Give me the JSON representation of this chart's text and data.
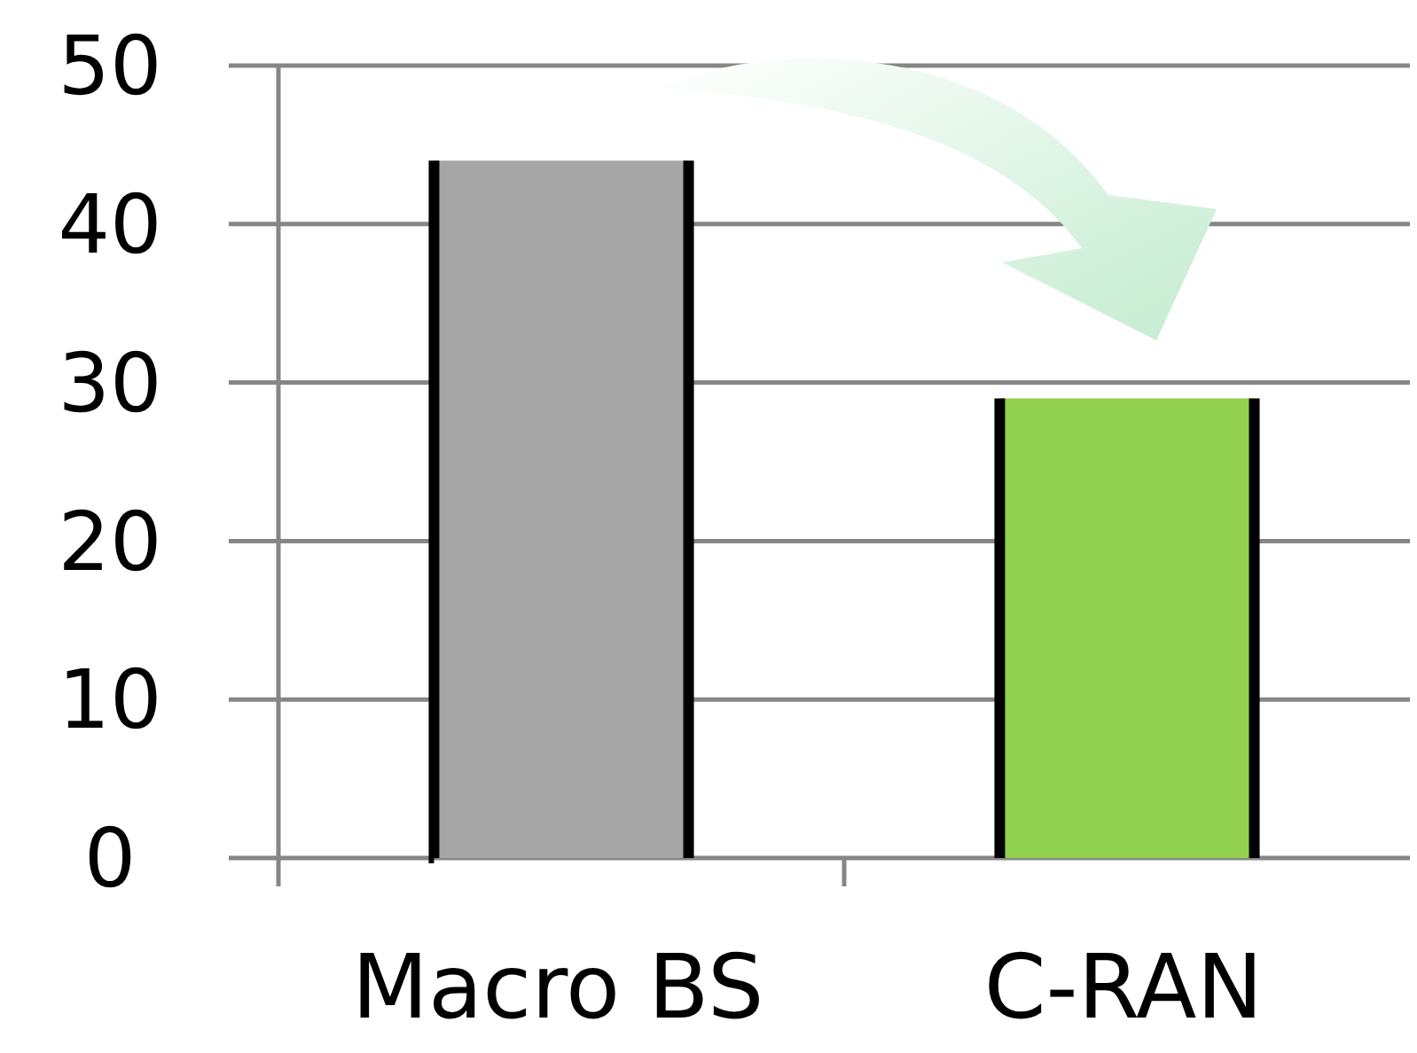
{
  "chart_data": {
    "type": "bar",
    "categories": [
      "Macro BS",
      "C-RAN"
    ],
    "values": [
      44,
      29
    ],
    "colors": [
      "#a6a6a6",
      "#92d050"
    ],
    "ylim": [
      0,
      50
    ],
    "yticks": [
      0,
      10,
      20,
      30,
      40,
      50
    ],
    "grid": "y"
  }
}
